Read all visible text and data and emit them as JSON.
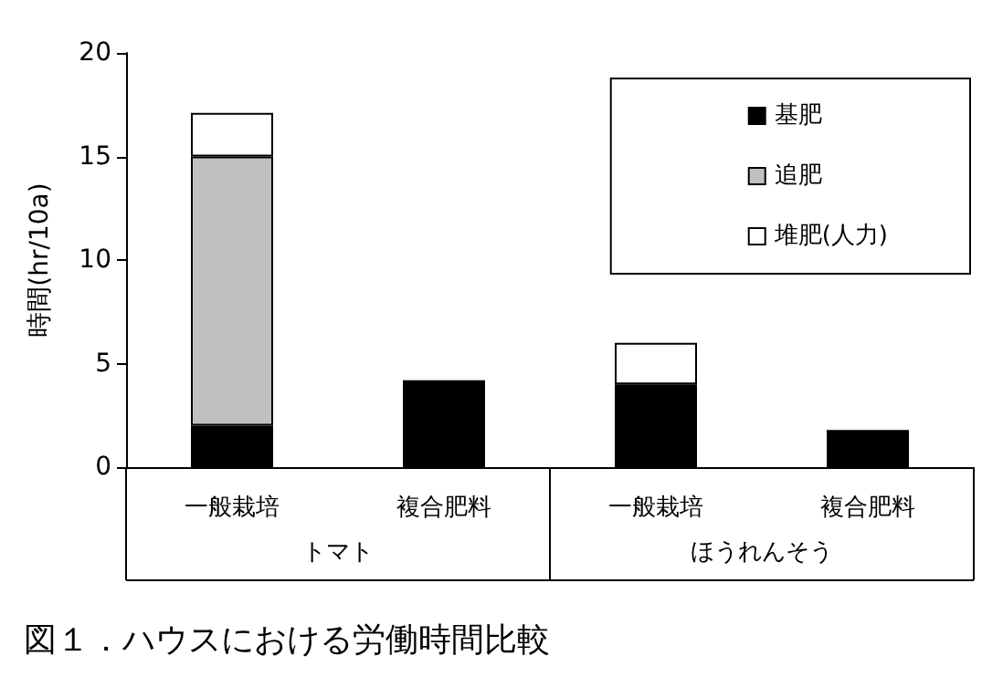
{
  "chart_data": {
    "type": "bar",
    "title": "図１．ハウスにおける労働時間比較",
    "ylabel": "時間(hr/10a)",
    "categories": [
      "一般栽培",
      "複合肥料",
      "一般栽培",
      "複合肥料"
    ],
    "annotations": [
      "トマト",
      "ほうれんそう"
    ],
    "stacked": true,
    "series": [
      {
        "name": "基肥",
        "color": "#000000",
        "values": [
          2,
          4.2,
          4,
          1.8
        ]
      },
      {
        "name": "追肥",
        "color": "#c0c0c0",
        "values": [
          13,
          null,
          null,
          null
        ]
      },
      {
        "name": "堆肥(人力)",
        "color": "#ffffff",
        "values": [
          2.1,
          null,
          2,
          null
        ]
      }
    ],
    "ylim": [
      0,
      20
    ],
    "yticks": [
      0,
      5,
      10,
      15,
      20
    ],
    "grid": false,
    "legend": "top right"
  }
}
